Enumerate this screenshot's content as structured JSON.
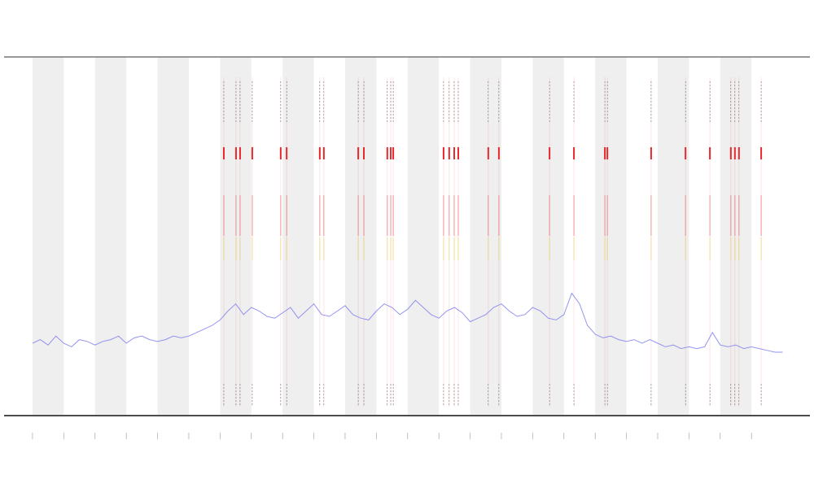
{
  "chart_data": {
    "type": "line",
    "x": [
      0,
      0.25,
      0.5,
      0.75,
      1,
      1.25,
      1.5,
      1.75,
      2,
      2.25,
      2.5,
      2.75,
      3,
      3.25,
      3.5,
      3.75,
      4,
      4.25,
      4.5,
      4.75,
      5,
      5.25,
      5.5,
      5.75,
      6,
      6.25,
      6.5,
      6.75,
      7,
      7.25,
      7.5,
      7.75,
      8,
      8.25,
      8.5,
      8.75,
      9,
      9.25,
      9.5,
      9.75,
      10,
      10.25,
      10.5,
      10.75,
      11,
      11.25,
      11.5,
      11.75,
      12,
      12.25,
      12.5,
      12.75,
      13,
      13.25,
      13.5,
      13.75,
      14,
      14.25,
      14.5,
      14.75,
      15,
      15.25,
      15.5,
      15.75,
      16,
      16.25,
      16.5,
      16.75,
      17,
      17.25,
      17.5,
      17.75,
      18,
      18.25,
      18.5,
      18.75,
      19,
      19.25,
      19.5,
      19.75,
      20,
      20.25,
      20.5,
      20.75,
      21,
      21.25,
      21.5,
      21.75,
      22,
      22.25,
      22.5,
      22.75,
      23,
      23.25,
      23.5,
      23.75,
      24
    ],
    "series": [
      {
        "color": "#7b7bee",
        "values": [
          20,
          21,
          19.5,
          22,
          20,
          19,
          21,
          20.5,
          19.5,
          20.5,
          21,
          22,
          20,
          21.5,
          22,
          21,
          20.5,
          21,
          22,
          21.5,
          22,
          23,
          24,
          25,
          26.5,
          29,
          31,
          28,
          30,
          29,
          27.5,
          27,
          28.5,
          30,
          27,
          29,
          31,
          28,
          27.5,
          29,
          30.5,
          28,
          27,
          26.5,
          29,
          31,
          30,
          28,
          29.5,
          32,
          30,
          28,
          27,
          29,
          30,
          28.5,
          26,
          27,
          28,
          30,
          31,
          29,
          27.5,
          28,
          30,
          29,
          27,
          26.5,
          28,
          34,
          31,
          25,
          22.5,
          21.5,
          22,
          21,
          20.5,
          21,
          20,
          21,
          20,
          19,
          19.5,
          18.5,
          19,
          18.5,
          19,
          23,
          19.5,
          19,
          19.5,
          18.5,
          19,
          18.5,
          18,
          17.5,
          17.5
        ]
      }
    ],
    "events": [
      6.12,
      6.51,
      6.64,
      7.03,
      7.94,
      8.13,
      9.19,
      9.32,
      10.42,
      10.6,
      11.35,
      11.46,
      11.54,
      13.15,
      13.33,
      13.49,
      13.62,
      14.58,
      14.92,
      16.54,
      17.32,
      18.31,
      18.39,
      19.79,
      20.89,
      21.67,
      22.34,
      22.47,
      22.6,
      23.31
    ],
    "event_color": "#e8282c",
    "xlim": [
      -0.91,
      24.87
    ],
    "xticks": [
      0,
      1,
      2,
      3,
      4,
      5,
      6,
      7,
      8,
      9,
      10,
      11,
      12,
      13,
      14,
      15,
      16,
      17,
      18,
      19,
      20,
      21,
      22,
      23
    ],
    "ylim": [
      0,
      100
    ],
    "shade_alternate": true
  }
}
